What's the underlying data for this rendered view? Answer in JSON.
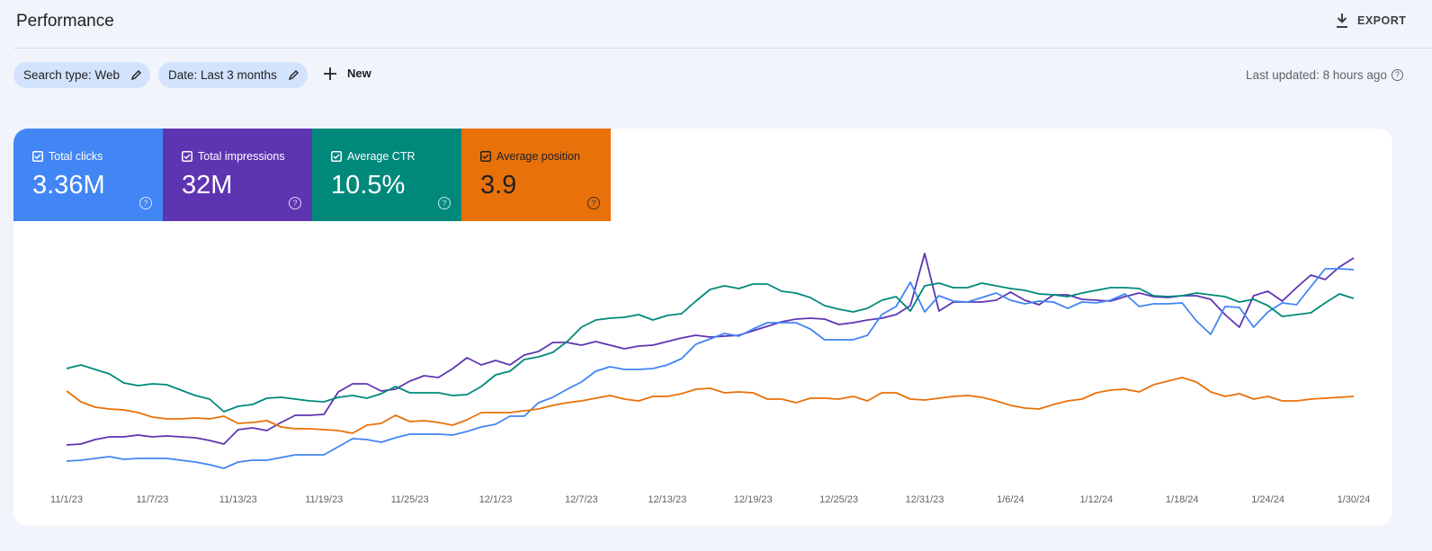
{
  "header": {
    "title": "Performance",
    "export": "EXPORT"
  },
  "filters": {
    "chips": [
      "Search type: Web",
      "Date: Last 3 months"
    ],
    "new": "New",
    "updated": "Last updated: 8 hours ago"
  },
  "chart_data": {
    "type": "line",
    "categories": [
      "11/1/23",
      null,
      null,
      null,
      null,
      null,
      "11/7/23",
      null,
      null,
      null,
      null,
      null,
      "11/13/23",
      null,
      null,
      null,
      null,
      null,
      "11/19/23",
      null,
      null,
      null,
      null,
      null,
      "11/25/23",
      null,
      null,
      null,
      null,
      null,
      "12/1/23",
      null,
      null,
      null,
      null,
      null,
      "12/7/23",
      null,
      null,
      null,
      null,
      null,
      "12/13/23",
      null,
      null,
      null,
      null,
      null,
      "12/19/23",
      null,
      null,
      null,
      null,
      null,
      "12/25/23",
      null,
      null,
      null,
      null,
      null,
      "12/31/23",
      null,
      null,
      null,
      null,
      null,
      "1/6/24",
      null,
      null,
      null,
      null,
      null,
      "1/12/24",
      null,
      null,
      null,
      null,
      null,
      "1/18/24",
      null,
      null,
      null,
      null,
      null,
      "1/24/24",
      null,
      null,
      null,
      null,
      null,
      "1/30/24"
    ],
    "ylim": [
      0,
      300
    ],
    "series": [
      {
        "name": "Total clicks",
        "summary": "3.36M",
        "color": "#4285f4",
        "text_color": "#ffffff",
        "values": [
          47,
          48,
          50,
          52,
          49,
          50,
          50,
          50,
          48,
          46,
          43,
          39,
          46,
          48,
          48,
          51,
          54,
          54,
          54,
          63,
          72,
          71,
          68,
          73,
          77,
          77,
          77,
          76,
          80,
          85,
          88,
          97,
          97,
          112,
          118,
          127,
          135,
          147,
          152,
          149,
          149,
          150,
          154,
          161,
          177,
          183,
          189,
          186,
          194,
          201,
          201,
          201,
          194,
          182,
          182,
          182,
          187,
          210,
          219,
          246,
          213,
          231,
          225,
          224,
          229,
          234,
          226,
          222,
          225,
          224,
          217,
          224,
          223,
          226,
          233,
          219,
          222,
          222,
          223,
          203,
          188,
          219,
          218,
          196,
          213,
          223,
          221,
          241,
          261,
          261,
          260
        ]
      },
      {
        "name": "Total impressions",
        "summary": "32M",
        "color": "#5e35b1",
        "text_color": "#ffffff",
        "values": [
          65,
          66,
          71,
          74,
          74,
          76,
          74,
          75,
          74,
          73,
          70,
          66,
          82,
          84,
          81,
          90,
          98,
          98,
          99,
          124,
          133,
          133,
          125,
          127,
          136,
          142,
          140,
          150,
          162,
          154,
          159,
          154,
          165,
          169,
          179,
          179,
          176,
          180,
          176,
          172,
          175,
          176,
          180,
          184,
          187,
          185,
          186,
          187,
          192,
          197,
          202,
          205,
          206,
          205,
          199,
          201,
          204,
          206,
          210,
          220,
          278,
          214,
          224,
          224,
          224,
          226,
          235,
          226,
          221,
          232,
          232,
          227,
          226,
          225,
          230,
          234,
          230,
          229,
          231,
          231,
          227,
          210,
          196,
          231,
          236,
          225,
          240,
          254,
          249,
          263,
          273
        ]
      },
      {
        "name": "Average CTR",
        "summary": "10.5%",
        "color": "#00897b",
        "text_color": "#ffffff",
        "values": [
          150,
          154,
          149,
          144,
          134,
          131,
          133,
          132,
          126,
          120,
          116,
          102,
          108,
          110,
          117,
          118,
          116,
          114,
          113,
          118,
          120,
          117,
          122,
          130,
          123,
          123,
          123,
          120,
          121,
          130,
          143,
          147,
          160,
          163,
          168,
          180,
          196,
          204,
          206,
          207,
          210,
          204,
          209,
          211,
          225,
          238,
          242,
          239,
          244,
          244,
          236,
          234,
          229,
          220,
          216,
          213,
          217,
          226,
          230,
          214,
          242,
          245,
          240,
          240,
          245,
          242,
          239,
          237,
          233,
          232,
          230,
          234,
          237,
          240,
          240,
          239,
          231,
          230,
          231,
          234,
          232,
          230,
          224,
          227,
          220,
          208,
          210,
          212,
          223,
          233,
          228
        ]
      },
      {
        "name": "Average position",
        "summary": "3.9",
        "color": "#e8710a",
        "text_color": "#202124",
        "values": [
          125,
          113,
          107,
          105,
          104,
          101,
          96,
          94,
          94,
          95,
          94,
          97,
          89,
          90,
          92,
          85,
          83,
          83,
          82,
          81,
          78,
          87,
          89,
          98,
          91,
          92,
          90,
          87,
          93,
          101,
          101,
          101,
          103,
          105,
          109,
          112,
          114,
          117,
          120,
          116,
          114,
          119,
          119,
          122,
          127,
          128,
          123,
          124,
          123,
          116,
          116,
          112,
          117,
          117,
          116,
          119,
          114,
          123,
          123,
          116,
          115,
          117,
          119,
          120,
          118,
          114,
          109,
          106,
          105,
          110,
          114,
          116,
          123,
          126,
          127,
          124,
          132,
          136,
          140,
          135,
          124,
          119,
          122,
          116,
          119,
          114,
          114,
          116,
          117,
          118,
          119
        ]
      }
    ]
  }
}
